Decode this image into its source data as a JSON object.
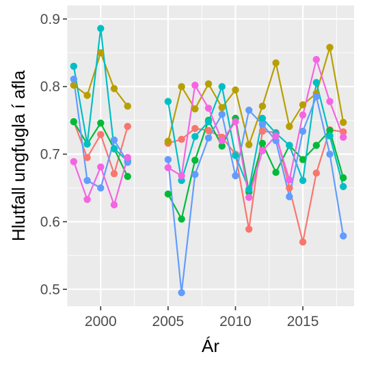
{
  "chart_data": {
    "type": "line",
    "title": "",
    "xlabel": "Ár",
    "ylabel": "Hlutfall ungfugla í afla",
    "xlim": [
      1997.5,
      2018.8
    ],
    "ylim": [
      0.475,
      0.92
    ],
    "x_ticks": [
      2000,
      2005,
      2010,
      2015
    ],
    "x_tick_labels": [
      "2000",
      "2005",
      "2010",
      "2015"
    ],
    "y_ticks": [
      0.5,
      0.6,
      0.7,
      0.8,
      0.9
    ],
    "y_tick_labels": [
      "0.5",
      "0.6",
      "0.7",
      "0.8",
      "0.9"
    ],
    "grid": true,
    "panel_background": "#ebebeb",
    "legend": "none",
    "series": [
      {
        "color": "#F8766D",
        "segments": [
          [
            [
              1998,
              0.748
            ],
            [
              1999,
              0.695
            ],
            [
              2000,
              0.729
            ],
            [
              2001,
              0.671
            ],
            [
              2002,
              0.741
            ]
          ],
          [
            [
              2005,
              0.716
            ],
            [
              2006,
              0.722
            ],
            [
              2007,
              0.738
            ],
            [
              2008,
              0.735
            ],
            [
              2009,
              0.725
            ],
            [
              2010,
              0.7
            ],
            [
              2011,
              0.589
            ],
            [
              2012,
              0.734
            ],
            [
              2013,
              0.732
            ],
            [
              2014,
              0.65
            ],
            [
              2015,
              0.57
            ],
            [
              2016,
              0.672
            ],
            [
              2017,
              0.736
            ],
            [
              2018,
              0.733
            ]
          ]
        ]
      },
      {
        "color": "#B79F00",
        "segments": [
          [
            [
              1998,
              0.802
            ],
            [
              1999,
              0.787
            ],
            [
              2000,
              0.85
            ],
            [
              2001,
              0.797
            ],
            [
              2002,
              0.771
            ]
          ],
          [
            [
              2005,
              0.719
            ],
            [
              2006,
              0.8
            ],
            [
              2007,
              0.767
            ],
            [
              2008,
              0.804
            ],
            [
              2009,
              0.769
            ],
            [
              2010,
              0.795
            ],
            [
              2011,
              0.714
            ],
            [
              2012,
              0.771
            ],
            [
              2013,
              0.835
            ],
            [
              2014,
              0.741
            ],
            [
              2015,
              0.773
            ],
            [
              2016,
              0.79
            ],
            [
              2017,
              0.858
            ],
            [
              2018,
              0.747
            ]
          ]
        ]
      },
      {
        "color": "#00BA38",
        "segments": [
          [
            [
              1998,
              0.748
            ],
            [
              1999,
              0.715
            ],
            [
              2000,
              0.746
            ],
            [
              2001,
              0.708
            ],
            [
              2002,
              0.667
            ]
          ],
          [
            [
              2005,
              0.641
            ],
            [
              2006,
              0.604
            ],
            [
              2007,
              0.691
            ],
            [
              2008,
              0.75
            ],
            [
              2009,
              0.712
            ],
            [
              2010,
              0.753
            ],
            [
              2011,
              0.644
            ],
            [
              2012,
              0.716
            ],
            [
              2013,
              0.673
            ],
            [
              2014,
              0.713
            ],
            [
              2015,
              0.692
            ],
            [
              2016,
              0.713
            ],
            [
              2017,
              0.735
            ],
            [
              2018,
              0.665
            ]
          ]
        ]
      },
      {
        "color": "#00BFC4",
        "segments": [
          [
            [
              1998,
              0.83
            ],
            [
              1999,
              0.715
            ],
            [
              2000,
              0.886
            ],
            [
              2001,
              0.708
            ],
            [
              2002,
              0.69
            ]
          ],
          [
            [
              2005,
              0.778
            ],
            [
              2006,
              0.661
            ],
            [
              2007,
              0.726
            ],
            [
              2008,
              0.748
            ],
            [
              2009,
              0.8
            ],
            [
              2010,
              0.698
            ],
            [
              2011,
              0.648
            ],
            [
              2012,
              0.753
            ],
            [
              2013,
              0.731
            ],
            [
              2014,
              0.713
            ],
            [
              2015,
              0.661
            ],
            [
              2016,
              0.806
            ],
            [
              2017,
              0.727
            ],
            [
              2018,
              0.652
            ]
          ]
        ]
      },
      {
        "color": "#619CFF",
        "segments": [
          [
            [
              1998,
              0.811
            ],
            [
              1999,
              0.661
            ],
            [
              2000,
              0.65
            ],
            [
              2001,
              0.721
            ],
            [
              2002,
              0.688
            ]
          ],
          [
            [
              2005,
              0.692
            ],
            [
              2006,
              0.495
            ],
            [
              2007,
              0.67
            ],
            [
              2008,
              0.724
            ],
            [
              2009,
              0.759
            ],
            [
              2010,
              0.668
            ],
            [
              2011,
              0.765
            ],
            [
              2012,
              0.744
            ],
            [
              2013,
              0.72
            ],
            [
              2014,
              0.637
            ],
            [
              2015,
              0.734
            ],
            [
              2016,
              0.785
            ],
            [
              2017,
              0.7
            ],
            [
              2018,
              0.579
            ]
          ]
        ]
      },
      {
        "color": "#F564E3",
        "segments": [
          [
            [
              1998,
              0.689
            ],
            [
              1999,
              0.633
            ],
            [
              2000,
              0.681
            ],
            [
              2001,
              0.625
            ],
            [
              2002,
              0.695
            ]
          ],
          [
            [
              2005,
              0.68
            ],
            [
              2006,
              0.668
            ],
            [
              2007,
              0.802
            ],
            [
              2008,
              0.768
            ],
            [
              2009,
              0.72
            ],
            [
              2010,
              0.748
            ],
            [
              2011,
              0.636
            ],
            [
              2012,
              0.705
            ],
            [
              2013,
              0.727
            ],
            [
              2014,
              0.662
            ],
            [
              2015,
              0.758
            ],
            [
              2016,
              0.84
            ],
            [
              2017,
              0.778
            ],
            [
              2018,
              0.725
            ]
          ]
        ]
      }
    ]
  }
}
